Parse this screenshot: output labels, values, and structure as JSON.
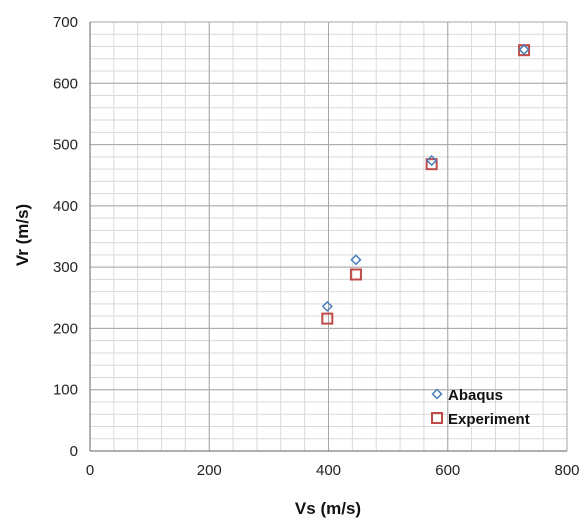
{
  "chart_data": {
    "type": "scatter",
    "xlabel": "Vs (m/s)",
    "ylabel": "Vr (m/s)",
    "xlim": [
      0,
      800
    ],
    "ylim": [
      0,
      700
    ],
    "x_ticks": [
      "0",
      "200",
      "400",
      "600",
      "800"
    ],
    "y_ticks": [
      "0",
      "100",
      "200",
      "300",
      "400",
      "500",
      "600",
      "700"
    ],
    "grid": true,
    "legend_position": "bottom-right",
    "series": [
      {
        "name": "Abaqus",
        "marker": "diamond",
        "color": "#4a7ebb",
        "points": [
          [
            398,
            236
          ],
          [
            446,
            312
          ],
          [
            573,
            474
          ],
          [
            728,
            655
          ]
        ]
      },
      {
        "name": "Experiment",
        "marker": "square",
        "color": "#be4b48",
        "points": [
          [
            398,
            216
          ],
          [
            446,
            288
          ],
          [
            573,
            468
          ],
          [
            728,
            654
          ]
        ]
      }
    ]
  }
}
